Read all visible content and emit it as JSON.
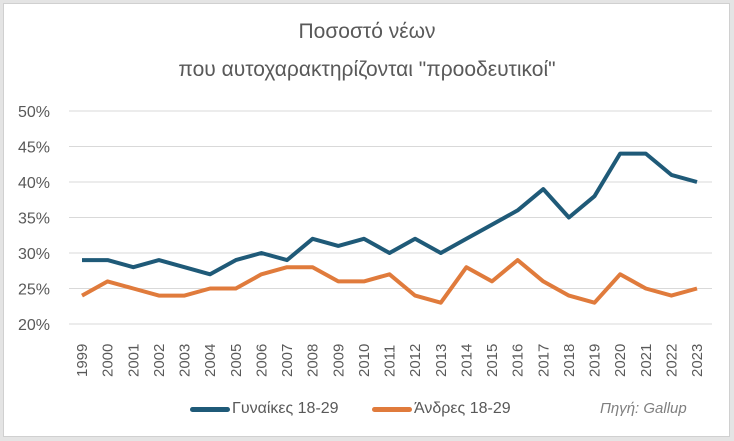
{
  "chart_data": {
    "type": "line",
    "title": "Ποσοστό νέων",
    "subtitle": "που αυτοχαρακτηρίζονται \"προοδευτικοί\"",
    "xlabel": "",
    "ylabel": "",
    "ylim": [
      0.2,
      0.5
    ],
    "yticks": [
      "20%",
      "25%",
      "30%",
      "35%",
      "40%",
      "45%",
      "50%"
    ],
    "grid": true,
    "legend_position": "bottom",
    "categories": [
      "1999",
      "2000",
      "2001",
      "2002",
      "2003",
      "2004",
      "2005",
      "2006",
      "2007",
      "2008",
      "2009",
      "2010",
      "2011",
      "2012",
      "2013",
      "2014",
      "2015",
      "2016",
      "2017",
      "2018",
      "2019",
      "2020",
      "2021",
      "2022",
      "2023"
    ],
    "series": [
      {
        "name": "Γυναίκες 18-29",
        "color": "#1f5a78",
        "values": [
          29,
          29,
          28,
          29,
          28,
          27,
          29,
          30,
          29,
          32,
          31,
          32,
          30,
          32,
          30,
          32,
          34,
          36,
          39,
          35,
          38,
          44,
          44,
          41,
          40
        ]
      },
      {
        "name": "Άνδρες 18-29",
        "color": "#e07b3c",
        "values": [
          24,
          26,
          25,
          24,
          24,
          25,
          25,
          27,
          28,
          28,
          26,
          26,
          27,
          24,
          23,
          28,
          26,
          29,
          26,
          24,
          23,
          27,
          25,
          24,
          25
        ]
      }
    ],
    "annotations": [
      "Πηγή: Gallup"
    ]
  },
  "title": {
    "line1": "Ποσοστό νέων",
    "line2": "που αυτοχαρακτηρίζονται \"προοδευτικοί\""
  },
  "legend": {
    "women": "Γυναίκες 18-29",
    "men": "Άνδρες 18-29"
  },
  "source": "Πηγή: Gallup"
}
